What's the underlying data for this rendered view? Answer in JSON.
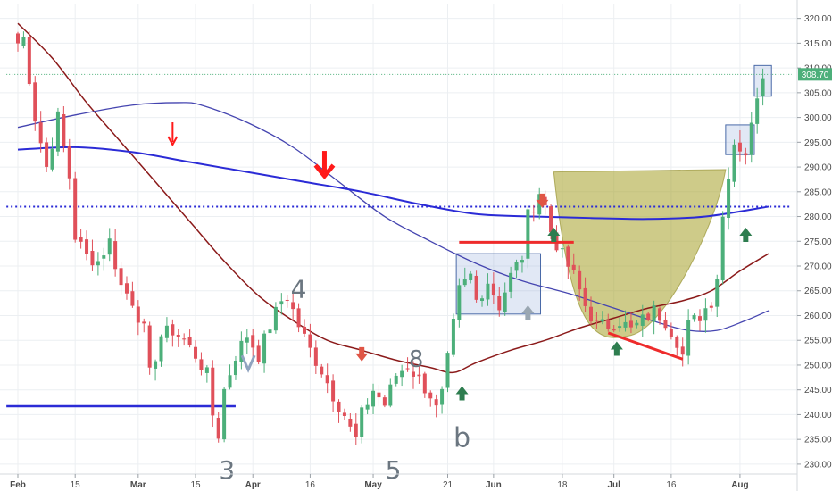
{
  "chart_data": {
    "type": "candlestick",
    "y_axis": {
      "ticks": [
        230,
        235,
        240,
        245,
        250,
        255,
        260,
        265,
        270,
        275,
        280,
        285,
        290,
        295,
        300,
        305,
        310,
        315,
        320
      ],
      "tick_labels": [
        "230.00",
        "235.00",
        "240.00",
        "245.00",
        "250.00",
        "255.00",
        "260.00",
        "265.00",
        "270.00",
        "275.00",
        "280.00",
        "285.00",
        "290.00",
        "295.00",
        "300.00",
        "305.00",
        "310.00",
        "315.00",
        "320.00"
      ],
      "range": [
        228,
        323
      ],
      "position": "right"
    },
    "x_axis": {
      "ticks": [
        {
          "label": "Feb",
          "bar": 0,
          "bold": true
        },
        {
          "label": "15",
          "bar": 10
        },
        {
          "label": "Mar",
          "bar": 21,
          "bold": true
        },
        {
          "label": "15",
          "bar": 31
        },
        {
          "label": "Apr",
          "bar": 41,
          "bold": true
        },
        {
          "label": "16",
          "bar": 51
        },
        {
          "label": "May",
          "bar": 62,
          "bold": true
        },
        {
          "label": "21",
          "bar": 75
        },
        {
          "label": "Jun",
          "bar": 83,
          "bold": true
        },
        {
          "label": "18",
          "bar": 95
        },
        {
          "label": "Jul",
          "bar": 104,
          "bold": true
        },
        {
          "label": "16",
          "bar": 114
        },
        {
          "label": "Aug",
          "bar": 126,
          "bold": true
        }
      ],
      "bar_count": 131
    },
    "last_price": 308.7,
    "last_price_label": "308.70",
    "colors": {
      "up": "#4caf7a",
      "down": "#e0505a",
      "ma_short": "#8b1a1a",
      "ma_mid": "#4545b0",
      "ma_long": "#2b2bd6"
    },
    "anchors": [
      {
        "bar": 0,
        "price": 315
      },
      {
        "bar": 1,
        "price": 316
      },
      {
        "bar": 2,
        "price": 308
      },
      {
        "bar": 3,
        "price": 300
      },
      {
        "bar": 5,
        "price": 290
      },
      {
        "bar": 7,
        "price": 300
      },
      {
        "bar": 9,
        "price": 288
      },
      {
        "bar": 10,
        "price": 276
      },
      {
        "bar": 12,
        "price": 272
      },
      {
        "bar": 14,
        "price": 271
      },
      {
        "bar": 16,
        "price": 275
      },
      {
        "bar": 18,
        "price": 266
      },
      {
        "bar": 20,
        "price": 263
      },
      {
        "bar": 22,
        "price": 257
      },
      {
        "bar": 23,
        "price": 248
      },
      {
        "bar": 25,
        "price": 256
      },
      {
        "bar": 27,
        "price": 257
      },
      {
        "bar": 29,
        "price": 255
      },
      {
        "bar": 31,
        "price": 252
      },
      {
        "bar": 33,
        "price": 248
      },
      {
        "bar": 34,
        "price": 240
      },
      {
        "bar": 35,
        "price": 236
      },
      {
        "bar": 36,
        "price": 245
      },
      {
        "bar": 38,
        "price": 252
      },
      {
        "bar": 40,
        "price": 256
      },
      {
        "bar": 42,
        "price": 252
      },
      {
        "bar": 44,
        "price": 258
      },
      {
        "bar": 46,
        "price": 263
      },
      {
        "bar": 47,
        "price": 264
      },
      {
        "bar": 49,
        "price": 258
      },
      {
        "bar": 51,
        "price": 253
      },
      {
        "bar": 53,
        "price": 249
      },
      {
        "bar": 55,
        "price": 244
      },
      {
        "bar": 57,
        "price": 240
      },
      {
        "bar": 58,
        "price": 237
      },
      {
        "bar": 59,
        "price": 235
      },
      {
        "bar": 60,
        "price": 240
      },
      {
        "bar": 62,
        "price": 245
      },
      {
        "bar": 64,
        "price": 242
      },
      {
        "bar": 66,
        "price": 248
      },
      {
        "bar": 68,
        "price": 250
      },
      {
        "bar": 70,
        "price": 247
      },
      {
        "bar": 72,
        "price": 244
      },
      {
        "bar": 73,
        "price": 241
      },
      {
        "bar": 74,
        "price": 244
      },
      {
        "bar": 75,
        "price": 251
      },
      {
        "bar": 76,
        "price": 258
      },
      {
        "bar": 77,
        "price": 265
      },
      {
        "bar": 79,
        "price": 268
      },
      {
        "bar": 80,
        "price": 263
      },
      {
        "bar": 82,
        "price": 267
      },
      {
        "bar": 84,
        "price": 262
      },
      {
        "bar": 86,
        "price": 268
      },
      {
        "bar": 88,
        "price": 272
      },
      {
        "bar": 89,
        "price": 280
      },
      {
        "bar": 91,
        "price": 285
      },
      {
        "bar": 92,
        "price": 282
      },
      {
        "bar": 93,
        "price": 277
      },
      {
        "bar": 95,
        "price": 272
      },
      {
        "bar": 97,
        "price": 268
      },
      {
        "bar": 99,
        "price": 262
      },
      {
        "bar": 101,
        "price": 258
      },
      {
        "bar": 103,
        "price": 258
      },
      {
        "bar": 105,
        "price": 259
      },
      {
        "bar": 107,
        "price": 257
      },
      {
        "bar": 109,
        "price": 259
      },
      {
        "bar": 111,
        "price": 261
      },
      {
        "bar": 113,
        "price": 259
      },
      {
        "bar": 115,
        "price": 255
      },
      {
        "bar": 116,
        "price": 252
      },
      {
        "bar": 117,
        "price": 258
      },
      {
        "bar": 119,
        "price": 260
      },
      {
        "bar": 121,
        "price": 263
      },
      {
        "bar": 122,
        "price": 268
      },
      {
        "bar": 123,
        "price": 280
      },
      {
        "bar": 124,
        "price": 289
      },
      {
        "bar": 125,
        "price": 295
      },
      {
        "bar": 126,
        "price": 294
      },
      {
        "bar": 127,
        "price": 293
      },
      {
        "bar": 128,
        "price": 298
      },
      {
        "bar": 129,
        "price": 305
      },
      {
        "bar": 130,
        "price": 309
      }
    ],
    "moving_averages": [
      {
        "id": "ma_short",
        "points": [
          {
            "bar": 0,
            "price": 319
          },
          {
            "bar": 6,
            "price": 312
          },
          {
            "bar": 12,
            "price": 303
          },
          {
            "bar": 18,
            "price": 295
          },
          {
            "bar": 24,
            "price": 287
          },
          {
            "bar": 30,
            "price": 279
          },
          {
            "bar": 36,
            "price": 271
          },
          {
            "bar": 42,
            "price": 264
          },
          {
            "bar": 48,
            "price": 259
          },
          {
            "bar": 54,
            "price": 255
          },
          {
            "bar": 60,
            "price": 253
          },
          {
            "bar": 66,
            "price": 251
          },
          {
            "bar": 72,
            "price": 249.5
          },
          {
            "bar": 76,
            "price": 248.5
          },
          {
            "bar": 80,
            "price": 250.5
          },
          {
            "bar": 86,
            "price": 253
          },
          {
            "bar": 92,
            "price": 255
          },
          {
            "bar": 98,
            "price": 257.5
          },
          {
            "bar": 104,
            "price": 259.5
          },
          {
            "bar": 110,
            "price": 261.5
          },
          {
            "bar": 116,
            "price": 263
          },
          {
            "bar": 121,
            "price": 265
          },
          {
            "bar": 126,
            "price": 269
          },
          {
            "bar": 131,
            "price": 272.5
          }
        ]
      },
      {
        "id": "ma_mid",
        "points": [
          {
            "bar": 0,
            "price": 298
          },
          {
            "bar": 10,
            "price": 300.5
          },
          {
            "bar": 20,
            "price": 302.5
          },
          {
            "bar": 28,
            "price": 303
          },
          {
            "bar": 32,
            "price": 302.5
          },
          {
            "bar": 40,
            "price": 299
          },
          {
            "bar": 48,
            "price": 294
          },
          {
            "bar": 56,
            "price": 287
          },
          {
            "bar": 64,
            "price": 280
          },
          {
            "bar": 72,
            "price": 275
          },
          {
            "bar": 80,
            "price": 270.5
          },
          {
            "bar": 88,
            "price": 267
          },
          {
            "bar": 96,
            "price": 264.5
          },
          {
            "bar": 104,
            "price": 261.5
          },
          {
            "bar": 112,
            "price": 258.5
          },
          {
            "bar": 117,
            "price": 257
          },
          {
            "bar": 122,
            "price": 257
          },
          {
            "bar": 127,
            "price": 259
          },
          {
            "bar": 131,
            "price": 261
          }
        ]
      },
      {
        "id": "ma_long",
        "points": [
          {
            "bar": 0,
            "price": 293.5
          },
          {
            "bar": 10,
            "price": 294
          },
          {
            "bar": 20,
            "price": 293
          },
          {
            "bar": 30,
            "price": 291
          },
          {
            "bar": 40,
            "price": 289
          },
          {
            "bar": 50,
            "price": 287
          },
          {
            "bar": 60,
            "price": 285
          },
          {
            "bar": 70,
            "price": 282.5
          },
          {
            "bar": 80,
            "price": 280.5
          },
          {
            "bar": 90,
            "price": 280
          },
          {
            "bar": 100,
            "price": 279.7
          },
          {
            "bar": 110,
            "price": 279.5
          },
          {
            "bar": 120,
            "price": 280
          },
          {
            "bar": 131,
            "price": 282
          }
        ]
      }
    ],
    "horizontal_lines": [
      {
        "id": "resistance-dotted",
        "price": 282,
        "from_bar": -2,
        "to_bar": 135,
        "style": "dotted"
      },
      {
        "id": "last-price-line",
        "price": 308.7,
        "from_bar": -2,
        "to_bar": 135,
        "style": "dotted-green"
      },
      {
        "id": "support-low",
        "price": 241.7,
        "from_bar": -2,
        "to_bar": 38,
        "style": "solid"
      }
    ],
    "trend_segments": [
      {
        "id": "breakout-level",
        "from": {
          "bar": 77,
          "price": 274.8
        },
        "to": {
          "bar": 97,
          "price": 274.8
        }
      },
      {
        "id": "cup-low-trend",
        "from": {
          "bar": 103,
          "price": 256.5
        },
        "to": {
          "bar": 116,
          "price": 251.2
        }
      }
    ],
    "boxes": [
      {
        "id": "box-consolidation",
        "bar_from": 76.5,
        "bar_to": 91.2,
        "price_top": 272.5,
        "price_bottom": 260.3
      },
      {
        "id": "box-mid",
        "bar_from": 123.5,
        "bar_to": 128.5,
        "price_top": 298.5,
        "price_bottom": 292.5
      },
      {
        "id": "box-top",
        "bar_from": 128.5,
        "bar_to": 131.5,
        "price_top": 310.5,
        "price_bottom": 304.3
      }
    ],
    "cup": {
      "left_top": {
        "bar": 93.5,
        "price": 289
      },
      "right_top": {
        "bar": 123.5,
        "price": 289.5
      },
      "bottom": {
        "bar": 107,
        "price": 256
      }
    },
    "arrows": [
      {
        "id": "arrow-down-1",
        "dir": "down",
        "bar": 27,
        "price": 296.5,
        "color": "#ff1a1a",
        "style": "thin"
      },
      {
        "id": "arrow-down-2",
        "dir": "down",
        "bar": 53.5,
        "price": 290,
        "color": "#ff1a1a",
        "style": "bold"
      },
      {
        "id": "arrow-down-3",
        "dir": "down",
        "bar": 60,
        "price": 252,
        "color": "#e05545",
        "style": "block"
      },
      {
        "id": "arrow-down-4",
        "dir": "down",
        "bar": 91.5,
        "price": 283,
        "color": "#e05545",
        "style": "block"
      },
      {
        "id": "arrow-up-1",
        "dir": "up",
        "bar": 77.5,
        "price": 244.5,
        "color": "#2e7d4f",
        "style": "block"
      },
      {
        "id": "arrow-up-2",
        "dir": "up",
        "bar": 89,
        "price": 260.8,
        "color": "#9aa7b2",
        "style": "block"
      },
      {
        "id": "arrow-up-3",
        "dir": "up",
        "bar": 93.5,
        "price": 276.5,
        "color": "#2e7d4f",
        "style": "block"
      },
      {
        "id": "arrow-up-4",
        "dir": "up",
        "bar": 104.5,
        "price": 253.5,
        "color": "#2e7d4f",
        "style": "block"
      },
      {
        "id": "arrow-up-5",
        "dir": "up",
        "bar": 127,
        "price": 276.5,
        "color": "#2e7d4f",
        "style": "block"
      },
      {
        "id": "arrow-v",
        "dir": "down",
        "bar": 40.2,
        "price": 250.5,
        "color": "#8fa3bf",
        "style": "vee"
      }
    ],
    "wave_labels": [
      {
        "text": "4",
        "bar": 49,
        "price": 265,
        "size": 28
      },
      {
        "text": "8",
        "bar": 69.5,
        "price": 251,
        "size": 26
      },
      {
        "text": "3",
        "bar": 36.5,
        "price": 228.5,
        "size": 28
      },
      {
        "text": "5",
        "bar": 65.5,
        "price": 228.5,
        "size": 28
      },
      {
        "text": "b",
        "bar": 77.5,
        "price": 235,
        "size": 30
      }
    ]
  }
}
